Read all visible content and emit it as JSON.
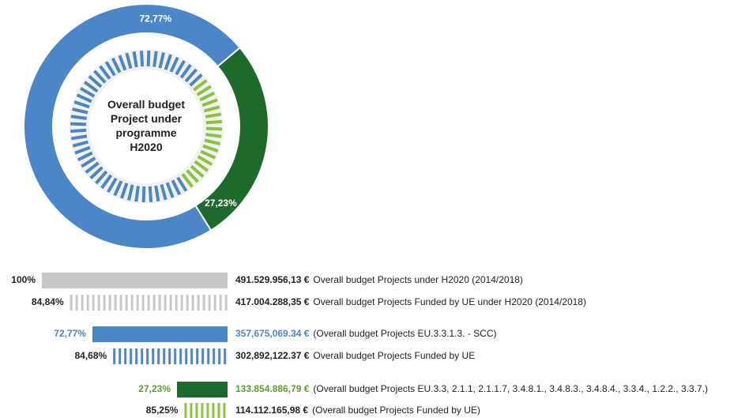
{
  "chart_data": [
    {
      "type": "donut",
      "title": "Overall budget Project under programme H2020",
      "values": [
        72.77,
        27.23
      ],
      "value_labels": [
        "72,77%",
        "27,23%"
      ],
      "colors": [
        "#4a86c8",
        "#1d6b2c"
      ],
      "inner_colors": [
        "#4a86c8",
        "#8dc23c"
      ]
    },
    {
      "type": "bar",
      "values": [
        100,
        84.84,
        72.77,
        84.68,
        27.23,
        85.25
      ],
      "value_labels": [
        "100%",
        "84,84%",
        "72,77%",
        "84,68%",
        "27,23%",
        "85,25%"
      ],
      "amount_labels": [
        "491.529.956,13 €",
        "417.004.288,35 €",
        "357,675,069.34 €",
        "302,892,122.37 €",
        "133.854.886,79 €",
        "114.112.165,98 €"
      ],
      "descriptions": [
        "Overall budget Projects under H2020 (2014/2018)",
        "Overall budget Projects Funded by UE under H2020 (2014/2018)",
        "(Overall budget Projects EU.3.3.1.3. - SCC)",
        "Overall budget Projects Funded by UE",
        "(Overall budget Projects EU.3.3, 2.1.1, 2.1.1.7, 3.4.8.1., 3.4.8.3., 3.4.8.4., 3.3.4., 1.2.2., 3.3.7.)",
        "(Overall budget Projects Funded by UE)"
      ],
      "colors": [
        "#c8c8c8",
        "#c8c8c8",
        "#4a86c8",
        "#4a86c8",
        "#1d6b2c",
        "#8dc23c"
      ],
      "styles": [
        "solid",
        "dashed",
        "solid",
        "dashed",
        "solid",
        "dashed"
      ],
      "label_colors": [
        "#222222",
        "#222222",
        "#4a86c8",
        "#222222",
        "#5a9e2a",
        "#222222"
      ]
    }
  ]
}
